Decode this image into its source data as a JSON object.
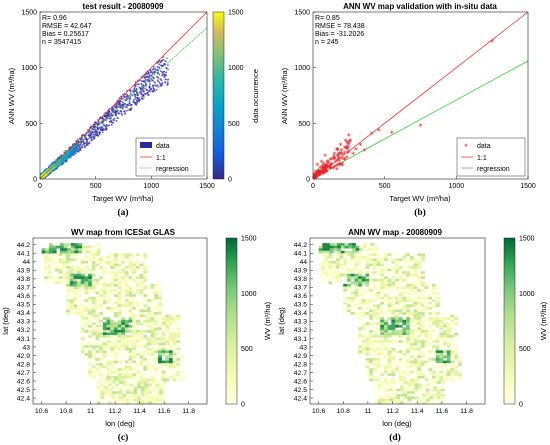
{
  "chart_data": [
    {
      "id": "a",
      "type": "scatter",
      "title": "test result - 20080909",
      "xlabel": "Target WV (m³/ha)",
      "ylabel": "ANN WV (m³/ha)",
      "xlim": [
        0,
        1500
      ],
      "ylim": [
        0,
        1500
      ],
      "xticks": [
        "0",
        "500",
        "1000",
        "1500"
      ],
      "yticks": [
        "0",
        "500",
        "1000",
        "1500"
      ],
      "stats": [
        "R= 0.96",
        "RMSE = 42.647",
        "Bias = 0.25617",
        "n = 3547415"
      ],
      "legend": {
        "position": "bottom-right",
        "entries": [
          "data",
          "1:1",
          "regression"
        ]
      },
      "colorbar": {
        "label": "data occurrence",
        "ticks": [
          "0",
          "500",
          "1000",
          "1500"
        ],
        "range": [
          0,
          1500
        ]
      },
      "lines": {
        "one_to_one": {
          "slope": 1,
          "intercept": 0
        },
        "regression": {
          "slope": 0.9,
          "intercept": 10
        }
      },
      "density_trend": [
        [
          0,
          20
        ],
        [
          100,
          110
        ],
        [
          200,
          190
        ],
        [
          300,
          280
        ],
        [
          400,
          360
        ],
        [
          500,
          460
        ],
        [
          600,
          540
        ],
        [
          700,
          640
        ],
        [
          800,
          720
        ],
        [
          900,
          820
        ],
        [
          1000,
          900
        ],
        [
          1100,
          980
        ]
      ],
      "colors": {
        "line_1_1": "#e8413c",
        "regression": "#3bd13b",
        "data": "#2a2a9a"
      },
      "caption": "(a)"
    },
    {
      "id": "b",
      "type": "scatter",
      "title": "ANN WV map validation with in-situ data",
      "xlabel": "Target WV (m³/ha)",
      "ylabel": "ANN WV (m³/ha)",
      "xlim": [
        0,
        1500
      ],
      "ylim": [
        0,
        1500
      ],
      "xticks": [
        "0",
        "500",
        "1000",
        "1500"
      ],
      "yticks": [
        "0",
        "500",
        "1000",
        "1500"
      ],
      "stats": [
        "R= 0.85",
        "RMSE = 78.438",
        "Bias = -31.2026",
        "n = 245"
      ],
      "legend": {
        "position": "bottom-right",
        "entries": [
          "data",
          "1:1",
          "regression"
        ]
      },
      "lines": {
        "one_to_one": {
          "slope": 1,
          "intercept": 0
        },
        "regression": {
          "slope": 0.7,
          "intercept": 10
        }
      },
      "points": [
        [
          1250,
          1230
        ],
        [
          750,
          470
        ],
        [
          550,
          410
        ],
        [
          460,
          430
        ],
        [
          410,
          400
        ],
        [
          360,
          250
        ],
        [
          330,
          300
        ],
        [
          300,
          260
        ],
        [
          280,
          220
        ],
        [
          250,
          240
        ],
        [
          230,
          280
        ],
        [
          220,
          170
        ],
        [
          200,
          250
        ],
        [
          180,
          120
        ],
        [
          170,
          200
        ],
        [
          160,
          150
        ],
        [
          150,
          180
        ],
        [
          140,
          90
        ],
        [
          130,
          130
        ],
        [
          120,
          170
        ],
        [
          110,
          100
        ],
        [
          100,
          150
        ],
        [
          95,
          60
        ],
        [
          90,
          110
        ],
        [
          85,
          200
        ],
        [
          80,
          80
        ],
        [
          75,
          130
        ],
        [
          70,
          40
        ],
        [
          65,
          90
        ],
        [
          60,
          150
        ],
        [
          55,
          60
        ],
        [
          50,
          100
        ],
        [
          45,
          30
        ],
        [
          40,
          70
        ],
        [
          35,
          50
        ],
        [
          30,
          120
        ],
        [
          25,
          20
        ],
        [
          20,
          60
        ],
        [
          15,
          40
        ],
        [
          10,
          10
        ]
      ],
      "colors": {
        "line_1_1": "#e8413c",
        "regression": "#3bd13b",
        "data": "#e8212b"
      },
      "caption": "(b)"
    },
    {
      "id": "c",
      "type": "heatmap",
      "title": "WV map from ICESat GLAS",
      "xlabel": "lon (deg)",
      "ylabel": "lat (deg)",
      "xticks": [
        "10.6",
        "10.8",
        "11",
        "11.2",
        "11.4",
        "11.6",
        "11.8"
      ],
      "yticks": [
        "44.2",
        "44.1",
        "44",
        "43.9",
        "43.8",
        "43.7",
        "43.6",
        "43.5",
        "43.4",
        "43.3",
        "43.2",
        "43.1",
        "43",
        "42.9",
        "42.8",
        "42.7",
        "42.6",
        "42.5",
        "42.4"
      ],
      "xlim": [
        10.53,
        11.95
      ],
      "ylim": [
        42.33,
        44.28
      ],
      "colorbar": {
        "label": "WV (m³/ha)",
        "ticks": [
          "0",
          "500",
          "1000",
          "1500"
        ],
        "range": [
          0,
          1500
        ]
      },
      "caption": "(c)"
    },
    {
      "id": "d",
      "type": "heatmap",
      "title": "ANN WV map - 20080909",
      "xlabel": "lon (deg)",
      "ylabel": "lat (deg)",
      "xticks": [
        "10.6",
        "10.8",
        "11",
        "11.2",
        "11.4",
        "11.6",
        "11.8"
      ],
      "yticks": [
        "44.2",
        "44.1",
        "44",
        "43.9",
        "43.8",
        "43.7",
        "43.6",
        "43.5",
        "43.4",
        "43.3",
        "43.2",
        "43.1",
        "43",
        "42.9",
        "42.8",
        "42.7",
        "42.6",
        "42.5",
        "42.4"
      ],
      "xlim": [
        10.53,
        11.95
      ],
      "ylim": [
        42.33,
        44.28
      ],
      "colorbar": {
        "label": "WV (m³/ha)",
        "ticks": [
          "0",
          "500",
          "1000",
          "1500"
        ],
        "range": [
          0,
          1500
        ]
      },
      "caption": "(d)"
    }
  ]
}
